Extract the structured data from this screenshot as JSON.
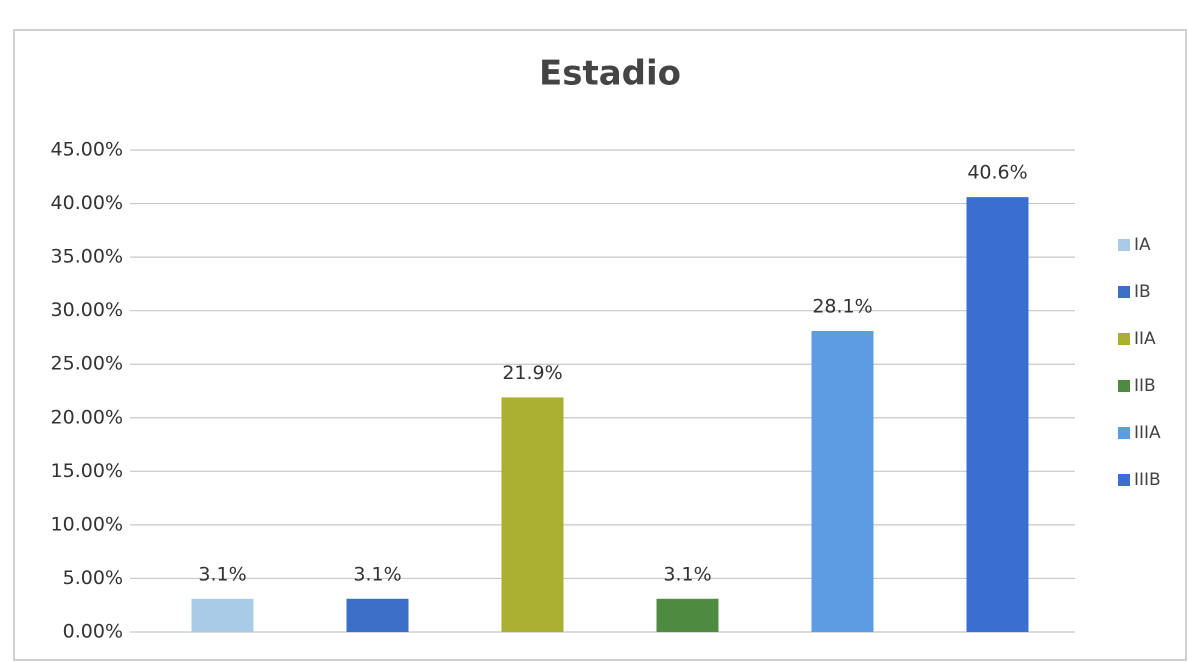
{
  "chart_data": {
    "type": "bar",
    "title": "Estadio",
    "categories": [
      "IA",
      "IB",
      "IIA",
      "IIB",
      "IIIA",
      "IIIB"
    ],
    "values": [
      3.1,
      3.1,
      21.9,
      3.1,
      28.1,
      40.6
    ],
    "value_labels": [
      "3.1%",
      "3.1%",
      "21.9%",
      "3.1%",
      "28.1%",
      "40.6%"
    ],
    "colors": [
      "#a9cbe8",
      "#3b6fc6",
      "#a9b02f",
      "#4f8b3f",
      "#5c9ce2",
      "#3a6ed0"
    ],
    "ylim": [
      0,
      45
    ],
    "yticks": [
      {
        "value": 0,
        "label": "0.00%"
      },
      {
        "value": 5,
        "label": "5.00%"
      },
      {
        "value": 10,
        "label": "10.00%"
      },
      {
        "value": 15,
        "label": "15.00%"
      },
      {
        "value": 20,
        "label": "20.00%"
      },
      {
        "value": 25,
        "label": "25.00%"
      },
      {
        "value": 30,
        "label": "30.00%"
      },
      {
        "value": 35,
        "label": "35.00%"
      },
      {
        "value": 40,
        "label": "40.00%"
      },
      {
        "value": 45,
        "label": "45.00%"
      }
    ],
    "grid": true,
    "legend": "right"
  }
}
